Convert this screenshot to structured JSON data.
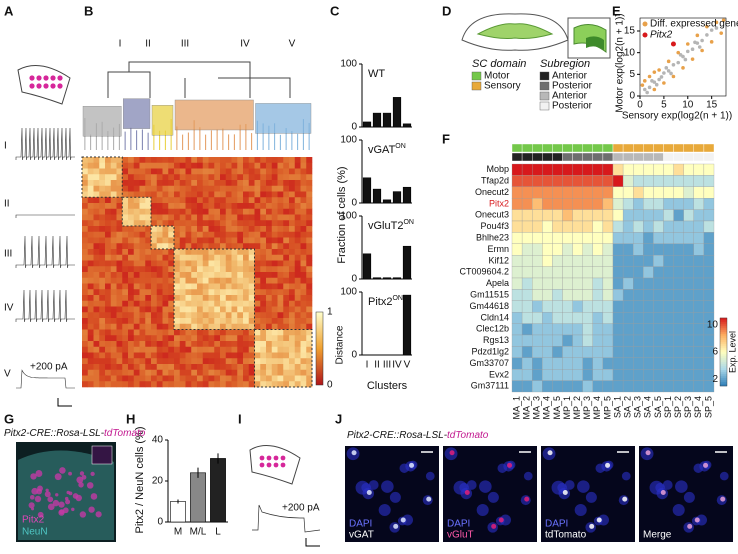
{
  "panel_labels": [
    "A",
    "B",
    "C",
    "D",
    "E",
    "F",
    "G",
    "H",
    "I",
    "J"
  ],
  "panel_a": {
    "traces": [
      "I",
      "II",
      "III",
      "IV",
      "V"
    ],
    "stimulus": "+200 pA"
  },
  "panel_b": {
    "clusters": [
      "I",
      "II",
      "III",
      "IV",
      "V"
    ],
    "colorbar_label": "Distance",
    "colorbar_lim": [
      0,
      1
    ],
    "colorbar_ticks": [
      0,
      1
    ],
    "colors": [
      "#aaaaaa",
      "#7a7fae",
      "#e8cf3a",
      "#e39a5c",
      "#7fb2dc"
    ]
  },
  "panel_d": {
    "domain_title": "SC domain",
    "subregion_title": "Subregion",
    "domains": [
      {
        "name": "Motor",
        "color": "#74c84a"
      },
      {
        "name": "Sensory",
        "color": "#e8a93a"
      }
    ],
    "subregions": [
      {
        "name": "Anterior",
        "color": "#222222"
      },
      {
        "name": "Posterior",
        "color": "#6e6e6e"
      },
      {
        "name": "Anterior",
        "color": "#b8b8b8"
      },
      {
        "name": "Posterior",
        "color": "#f2f2f2"
      }
    ]
  },
  "panel_g": {
    "title_parts": [
      "Pitx2-CRE::Rosa-LSL-",
      "tdTomato"
    ],
    "labels": [
      "Pitx2",
      "NeuN"
    ]
  },
  "panel_i": {
    "stimulus": "+200 pA"
  },
  "panel_j": {
    "title_parts": [
      "Pitx2-CRE::Rosa-LSL-",
      "tdTomato"
    ],
    "images": [
      [
        "DAPI",
        "vGAT"
      ],
      [
        "DAPI",
        "vGluT"
      ],
      [
        "DAPI",
        "tdTomato"
      ],
      [
        "Merge"
      ]
    ]
  },
  "chart_data": [
    {
      "type": "bar",
      "title": "WT",
      "values": [
        8,
        22,
        22,
        47,
        5
      ],
      "color": "#111111",
      "ylim": [
        0,
        100
      ],
      "yticks": [
        0,
        100
      ],
      "ylabel": "Fraction of cells (%)"
    },
    {
      "type": "bar",
      "title": "vGAT",
      "title_superscript": "ON",
      "values": [
        40,
        22,
        5,
        18,
        25
      ],
      "color": "#111111",
      "ylim": [
        0,
        100
      ],
      "yticks": [
        0,
        100
      ]
    },
    {
      "type": "bar",
      "title": "vGluT2",
      "title_superscript": "ON",
      "values": [
        40,
        2,
        2,
        2,
        52
      ],
      "color": "#111111",
      "ylim": [
        0,
        100
      ],
      "yticks": [
        0,
        100
      ]
    },
    {
      "type": "bar",
      "title": "Pitx2",
      "title_superscript": "ON",
      "categories": [
        "I",
        "II",
        "III",
        "IV",
        "V"
      ],
      "values": [
        0,
        0,
        0,
        0,
        95
      ],
      "color": "#111111",
      "ylim": [
        0,
        100
      ],
      "yticks": [
        0,
        100
      ],
      "xlabel": "Clusters"
    },
    {
      "type": "scatter",
      "xlabel": "Sensory exp(log2(n + 1))",
      "ylabel": "Motor exp(log2(n + 1))",
      "xlim": [
        0,
        18
      ],
      "ylim": [
        0,
        18
      ],
      "xticks": [
        0,
        5,
        10,
        15
      ],
      "yticks": [
        0,
        5,
        10,
        15
      ],
      "series": [
        {
          "color": "#b5b5b5",
          "x": [
            1,
            2,
            3,
            4,
            5,
            6,
            7,
            8,
            9,
            10,
            11,
            12,
            13,
            14,
            15,
            16,
            2.5,
            3.5,
            5.5,
            6.5,
            8.5,
            9.5,
            11.5,
            12.5,
            4.5,
            1.5
          ],
          "y": [
            1.5,
            2,
            3.2,
            3.8,
            5.3,
            5.8,
            7.2,
            7.7,
            9.1,
            10.3,
            10.8,
            12.2,
            12.8,
            14.1,
            15.2,
            15.7,
            3.5,
            2.6,
            6.5,
            5.2,
            9.5,
            8.4,
            12.4,
            11.3,
            4.4,
            0.8
          ]
        },
        {
          "name": "Diff. expressed genes",
          "color": "#e8a14a",
          "x": [
            0.5,
            1,
            2,
            3,
            4,
            5,
            6,
            7,
            8,
            9,
            10,
            11,
            12,
            13,
            14,
            15,
            16,
            17,
            17.5,
            3
          ],
          "y": [
            2.5,
            3.5,
            4.5,
            1.5,
            6,
            3,
            8,
            4.5,
            10,
            6.5,
            12,
            8.5,
            14,
            10.5,
            16,
            12.5,
            17,
            14.5,
            17.5,
            5.5
          ]
        },
        {
          "name": "Pitx2",
          "color": "#d7191c",
          "x": [
            7
          ],
          "y": [
            12
          ]
        }
      ]
    },
    {
      "type": "heatmap",
      "legend_title": "Exp. Level",
      "zlim": [
        1,
        11
      ],
      "zticks": [
        2,
        6,
        10
      ],
      "colormap": [
        "#2c7bb6",
        "#abd9e9",
        "#ffffbf",
        "#fdae61",
        "#d7191c"
      ],
      "highlight_rows": [
        3
      ],
      "highlight_color": "#d7191c",
      "rows": [
        "Mobp",
        "Tfap2d",
        "Onecut2",
        "Pitx2",
        "Onecut3",
        "Pou4f3",
        "Bhlhe23",
        "Ermn",
        "Kif12",
        "CT009604.2",
        "Apela",
        "Gm11515",
        "Gm44618",
        "Cldn14",
        "Clec12b",
        "Rgs13",
        "Pdzd1lg2",
        "Gm33707",
        "Evx2",
        "Gm37111"
      ],
      "columns": [
        "MA_1",
        "MA_2",
        "MA_3",
        "MA_4",
        "MA_5",
        "MP_1",
        "MP_2",
        "MP_3",
        "MP_4",
        "MP_5",
        "SA_1",
        "SA_2",
        "SA_3",
        "SA_4",
        "SA_5",
        "SP_1",
        "SP_2",
        "SP_3",
        "SP_4",
        "SP_5"
      ],
      "values": [
        [
          11,
          11,
          11,
          11,
          11,
          11,
          11,
          11,
          11,
          11,
          7,
          6,
          6,
          6,
          6,
          6,
          7,
          6,
          6,
          6
        ],
        [
          10,
          10,
          10,
          10,
          10,
          10,
          10,
          10,
          10,
          10,
          11,
          5,
          4,
          4,
          4,
          4,
          4,
          4,
          4,
          4
        ],
        [
          9,
          9,
          9,
          9,
          9,
          9,
          9,
          9,
          9,
          9,
          6,
          6,
          7,
          6,
          6,
          6,
          6,
          5,
          6,
          6
        ],
        [
          9,
          9,
          8,
          9,
          9,
          9,
          9,
          9,
          9,
          8,
          5,
          4,
          3,
          4,
          4,
          3,
          3,
          3,
          4,
          3
        ],
        [
          7,
          7,
          7,
          7,
          7,
          8,
          7,
          7,
          7,
          7,
          6,
          3,
          3,
          3,
          3,
          4,
          2,
          4,
          3,
          3
        ],
        [
          7,
          7,
          7,
          6,
          7,
          7,
          7,
          7,
          6,
          7,
          4,
          3,
          4,
          3,
          4,
          3,
          3,
          3,
          3,
          4
        ],
        [
          6,
          6,
          6,
          6,
          6,
          6,
          6,
          6,
          6,
          6,
          3,
          3,
          3,
          2,
          3,
          3,
          3,
          3,
          3,
          2
        ],
        [
          6,
          5,
          5,
          6,
          6,
          5,
          6,
          5,
          6,
          5,
          2,
          2,
          3,
          2,
          2,
          2,
          2,
          2,
          3,
          2
        ],
        [
          5,
          5,
          5,
          6,
          5,
          5,
          5,
          5,
          5,
          5,
          2,
          2,
          2,
          2,
          3,
          2,
          2,
          2,
          2,
          2
        ],
        [
          5,
          5,
          5,
          5,
          5,
          5,
          5,
          5,
          5,
          5,
          2,
          2,
          2,
          3,
          2,
          2,
          2,
          2,
          2,
          2
        ],
        [
          5,
          4,
          5,
          5,
          5,
          5,
          5,
          5,
          4,
          5,
          2,
          3,
          2,
          2,
          2,
          2,
          2,
          2,
          2,
          2
        ],
        [
          4,
          4,
          5,
          5,
          4,
          5,
          5,
          5,
          4,
          5,
          3,
          2,
          2,
          2,
          2,
          2,
          2,
          2,
          2,
          2
        ],
        [
          4,
          4,
          3,
          4,
          4,
          4,
          3,
          4,
          4,
          4,
          2,
          2,
          2,
          2,
          2,
          2,
          2,
          2,
          2,
          2
        ],
        [
          3,
          4,
          4,
          3,
          4,
          4,
          4,
          4,
          3,
          4,
          2,
          2,
          2,
          2,
          2,
          2,
          2,
          2,
          2,
          2
        ],
        [
          3,
          2,
          3,
          3,
          3,
          3,
          3,
          4,
          3,
          3,
          2,
          2,
          2,
          2,
          2,
          2,
          2,
          2,
          2,
          2
        ],
        [
          3,
          3,
          3,
          3,
          3,
          2,
          3,
          4,
          3,
          3,
          2,
          2,
          2,
          2,
          2,
          2,
          2,
          2,
          2,
          2
        ],
        [
          3,
          2,
          3,
          3,
          2,
          3,
          3,
          3,
          3,
          3,
          2,
          2,
          2,
          2,
          2,
          2,
          2,
          2,
          2,
          2
        ],
        [
          2,
          3,
          2,
          3,
          3,
          3,
          3,
          2,
          3,
          2,
          2,
          2,
          2,
          2,
          2,
          2,
          2,
          2,
          2,
          2
        ],
        [
          3,
          3,
          2,
          3,
          3,
          3,
          3,
          2,
          3,
          3,
          2,
          2,
          2,
          2,
          2,
          2,
          2,
          2,
          2,
          2
        ],
        [
          2,
          2,
          3,
          2,
          2,
          2,
          2,
          3,
          2,
          2,
          2,
          2,
          2,
          2,
          2,
          2,
          2,
          2,
          2,
          2
        ]
      ]
    },
    {
      "type": "bar",
      "ylabel": "Pitx2 / NeuN cells (%)",
      "categories": [
        "M",
        "M/L",
        "L"
      ],
      "values": [
        10,
        24,
        31
      ],
      "errors": [
        1,
        2.5,
        2.5
      ],
      "colors": [
        "#ffffff",
        "#888888",
        "#222222"
      ],
      "ylim": [
        0,
        40
      ],
      "yticks": [
        0,
        20,
        40
      ]
    }
  ]
}
